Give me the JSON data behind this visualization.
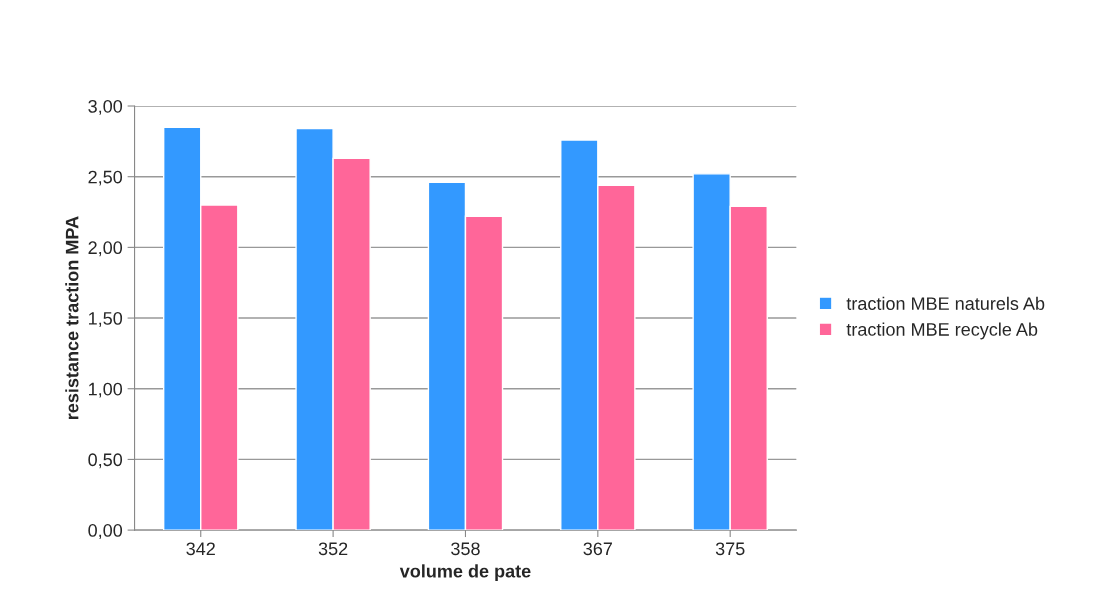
{
  "chart_data": {
    "type": "bar",
    "xlabel": "volume de pate",
    "ylabel": "resistance traction MPA",
    "categories": [
      "342",
      "352",
      "358",
      "367",
      "375"
    ],
    "series": [
      {
        "name": "traction MBE naturels Ab",
        "color": "#3399ff",
        "values": [
          2.85,
          2.84,
          2.46,
          2.76,
          2.52
        ]
      },
      {
        "name": "traction MBE recycle Ab",
        "color": "#ff6699",
        "values": [
          2.3,
          2.63,
          2.22,
          2.44,
          2.29
        ]
      }
    ],
    "ylim": [
      0,
      3
    ],
    "yticks": [
      {
        "value": 0,
        "label": "0,00"
      },
      {
        "value": 0.5,
        "label": "0,50"
      },
      {
        "value": 1,
        "label": "1,00"
      },
      {
        "value": 1.5,
        "label": "1,50"
      },
      {
        "value": 2,
        "label": "2,00"
      },
      {
        "value": 2.5,
        "label": "2,50"
      },
      {
        "value": 3,
        "label": "3,00"
      }
    ],
    "grid": "y",
    "legend": "right"
  }
}
